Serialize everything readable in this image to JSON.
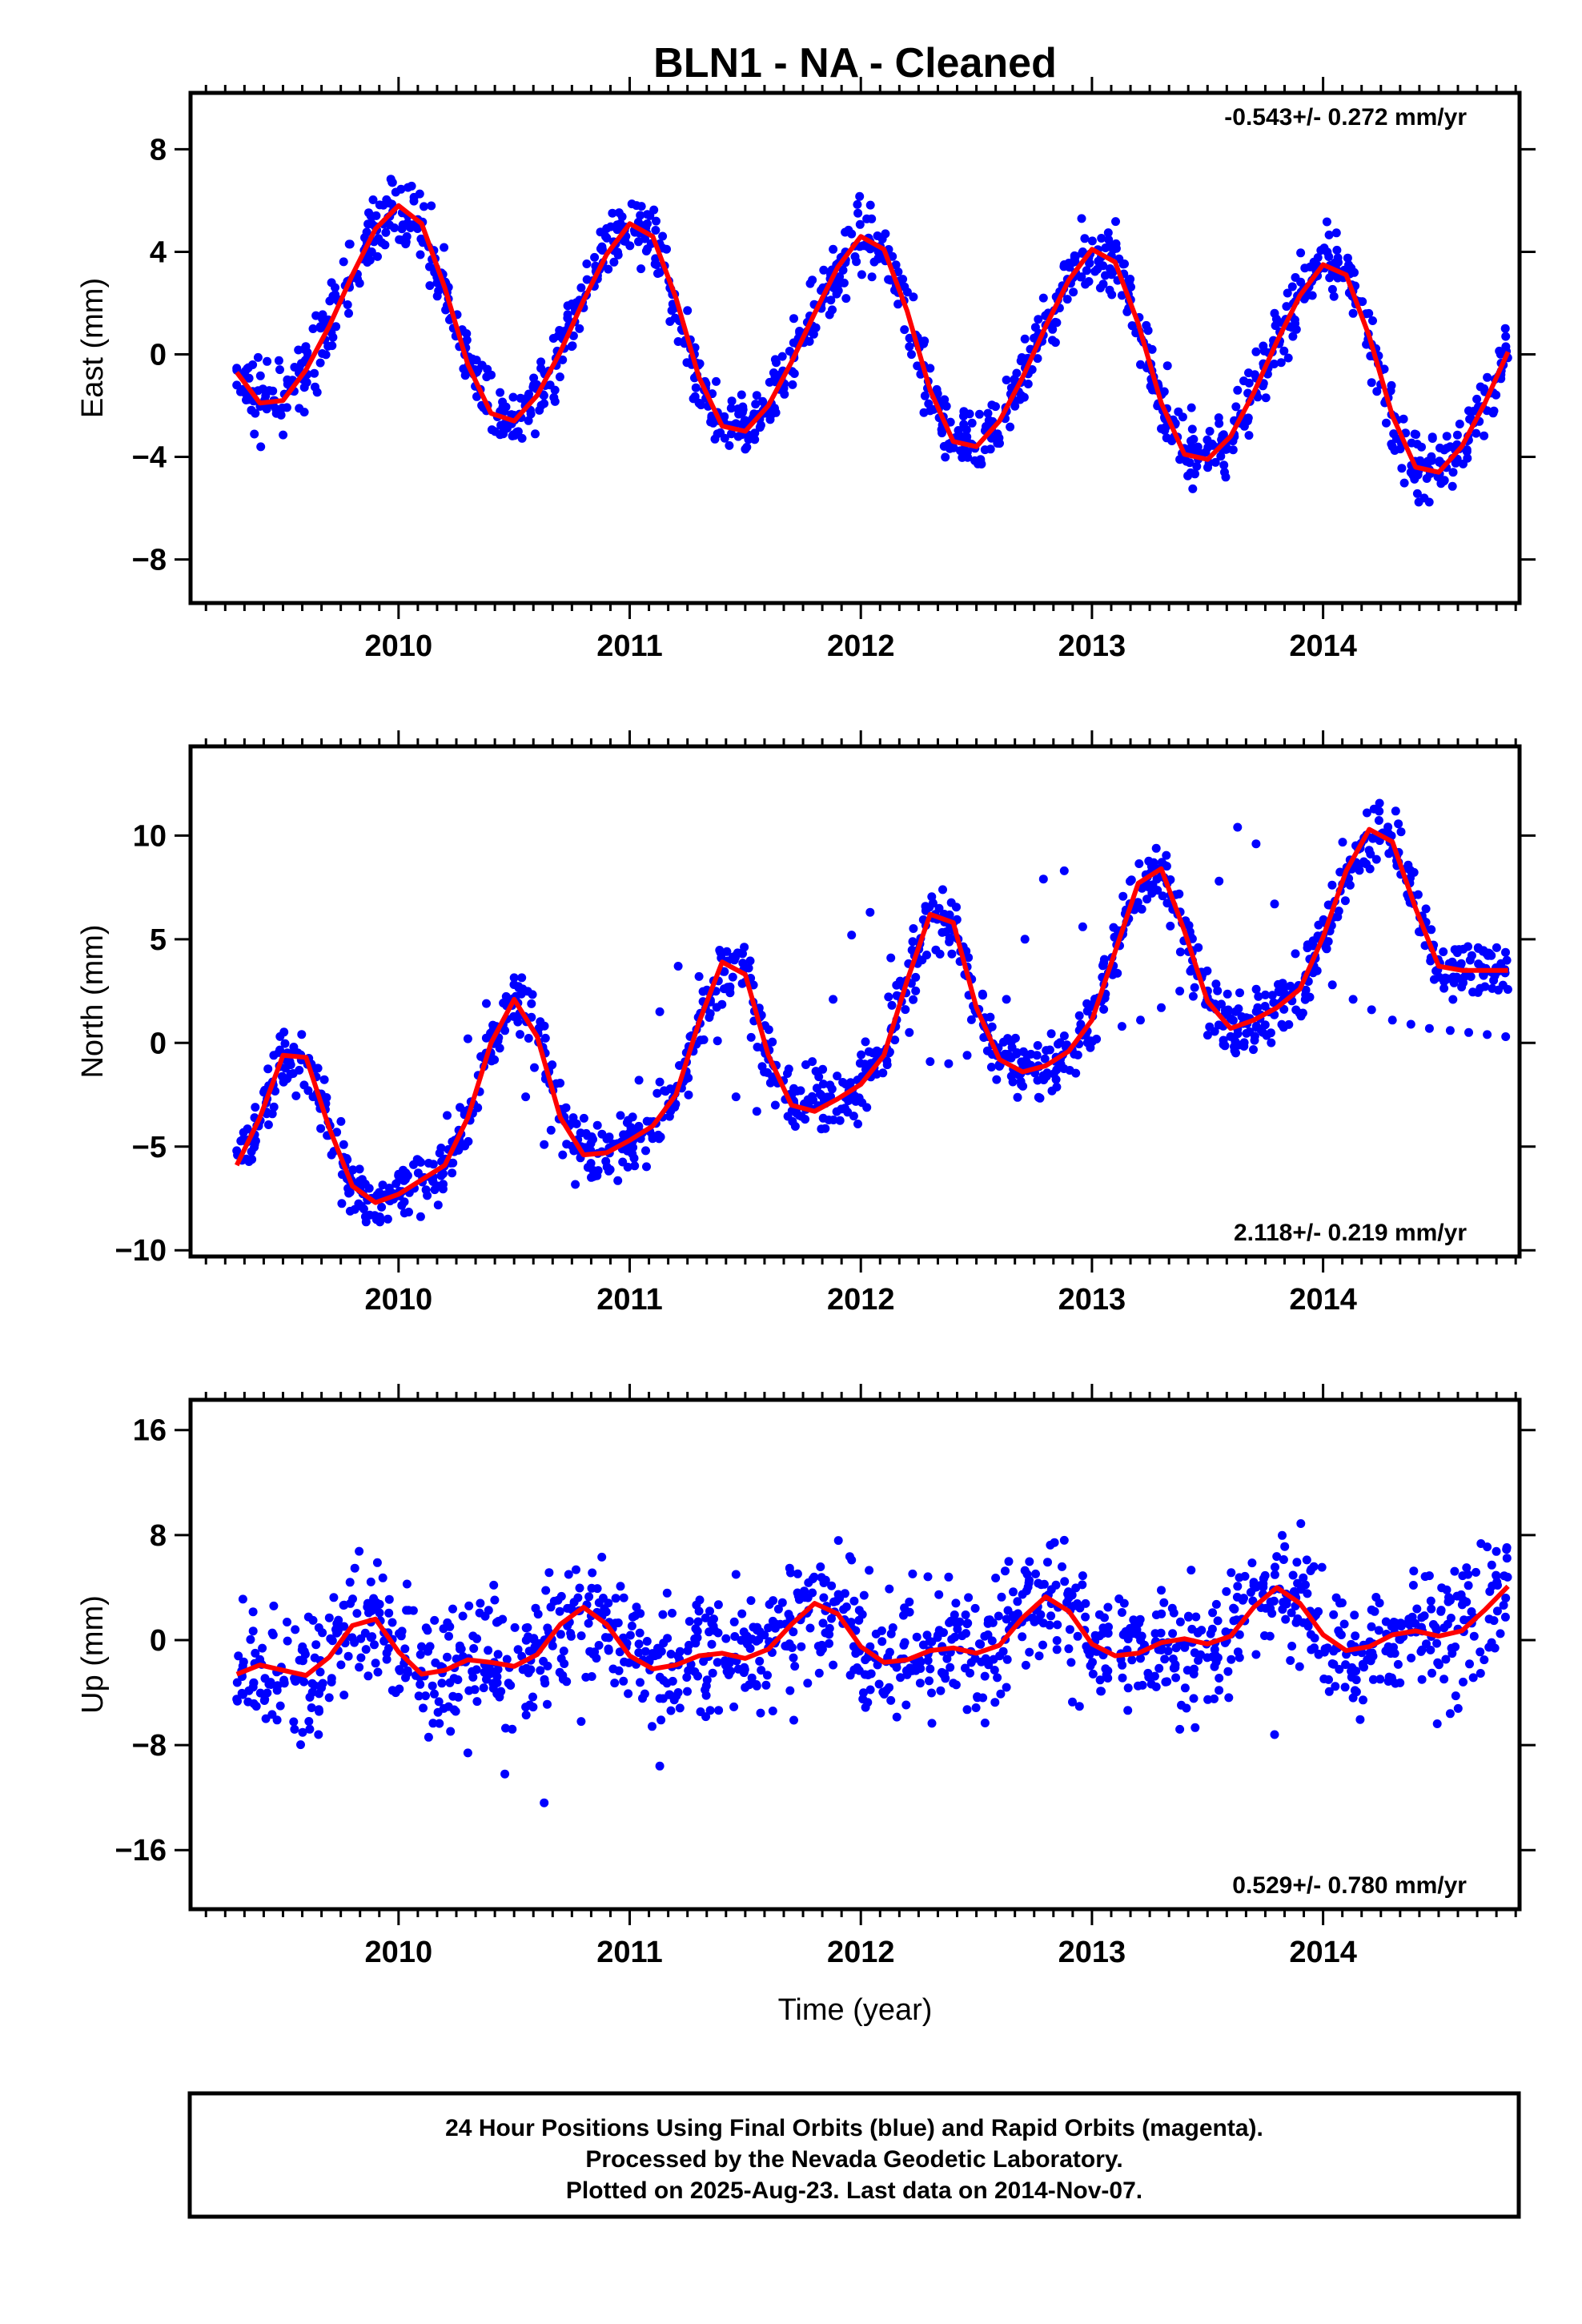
{
  "title": "BLN1  - NA - Cleaned",
  "colors": {
    "final_orbits": "#0000ff",
    "fit": "#ff0000",
    "frame": "#000000"
  },
  "footer": {
    "line1": "24 Hour Positions Using Final Orbits (blue) and Rapid Orbits (magenta).",
    "line2": "Processed by the Nevada Geodetic Laboratory.",
    "line3": "Plotted on 2025-Aug-23. Last data on 2014-Nov-07."
  },
  "chart_data": [
    {
      "type": "scatter",
      "title": "",
      "xlabel": "",
      "ylabel": "East (mm)",
      "xlim": [
        2009.1,
        2014.85
      ],
      "ylim": [
        -9.7,
        10.2
      ],
      "xticks": [
        "2010",
        "2011",
        "2012",
        "2013",
        "2014"
      ],
      "yticks": [
        "8",
        "4",
        "0",
        "−4",
        "−8"
      ],
      "rate": "-0.543+/- 0.272 mm/yr",
      "rate_position": "top-right",
      "series": [
        {
          "role": "daily_positions",
          "x": [
            2009.3,
            2009.38,
            2009.46,
            2009.55,
            2009.63,
            2009.71,
            2009.79,
            2009.88,
            2009.96,
            2010.04,
            2010.13,
            2010.21,
            2010.3,
            2010.38,
            2010.46,
            2010.55,
            2010.63,
            2010.71,
            2010.79,
            2010.88,
            2010.96,
            2011.04,
            2011.13,
            2011.21,
            2011.3,
            2011.38,
            2011.46,
            2011.55,
            2011.63,
            2011.71,
            2011.79,
            2011.88,
            2011.96,
            2012.04,
            2012.13,
            2012.21,
            2012.3,
            2012.38,
            2012.46,
            2012.55,
            2012.63,
            2012.71,
            2012.79,
            2012.88,
            2012.96,
            2013.04,
            2013.13,
            2013.21,
            2013.3,
            2013.38,
            2013.46,
            2013.55,
            2013.63,
            2013.71,
            2013.79,
            2013.88,
            2013.96,
            2014.04,
            2014.13,
            2014.21,
            2014.3,
            2014.38,
            2014.46,
            2014.55,
            2014.63,
            2014.71,
            2014.79
          ],
          "y": [
            -1.2,
            -2.3,
            -1.8,
            -0.5,
            1.0,
            2.8,
            4.3,
            5.4,
            5.9,
            5.4,
            4.2,
            1.9,
            -0.6,
            -2.2,
            -2.7,
            -1.9,
            -0.7,
            0.9,
            2.6,
            4.2,
            5.1,
            4.9,
            3.2,
            0.5,
            -1.9,
            -3.1,
            -2.7,
            -1.6,
            -0.2,
            1.4,
            2.9,
            4.1,
            4.7,
            4.4,
            2.9,
            0.3,
            -2.2,
            -3.5,
            -3.4,
            -2.3,
            -1.0,
            0.6,
            2.2,
            3.5,
            4.0,
            3.8,
            2.3,
            -0.4,
            -2.9,
            -4.1,
            -3.8,
            -2.7,
            -1.4,
            0.1,
            1.6,
            3.0,
            3.6,
            3.2,
            1.6,
            -1.1,
            -3.6,
            -4.6,
            -4.5,
            -3.6,
            -2.2,
            -0.9,
            0.7
          ]
        },
        {
          "role": "fit",
          "x": [
            2009.3,
            2009.4,
            2009.5,
            2009.6,
            2009.7,
            2009.8,
            2009.9,
            2010.0,
            2010.1,
            2010.2,
            2010.3,
            2010.4,
            2010.5,
            2010.6,
            2010.7,
            2010.8,
            2010.9,
            2011.0,
            2011.1,
            2011.2,
            2011.3,
            2011.4,
            2011.5,
            2011.6,
            2011.7,
            2011.8,
            2011.9,
            2012.0,
            2012.1,
            2012.2,
            2012.3,
            2012.4,
            2012.5,
            2012.6,
            2012.7,
            2012.8,
            2012.9,
            2013.0,
            2013.1,
            2013.2,
            2013.3,
            2013.4,
            2013.5,
            2013.6,
            2013.7,
            2013.8,
            2013.9,
            2014.0,
            2014.1,
            2014.2,
            2014.3,
            2014.4,
            2014.5,
            2014.6,
            2014.7,
            2014.8
          ],
          "y": [
            -0.7,
            -1.9,
            -1.8,
            -0.6,
            1.1,
            3.1,
            4.9,
            5.8,
            5.1,
            2.6,
            -0.4,
            -2.3,
            -2.6,
            -1.6,
            0.1,
            2.1,
            3.9,
            5.1,
            4.6,
            2.2,
            -0.9,
            -2.8,
            -3.0,
            -2.0,
            -0.3,
            1.6,
            3.4,
            4.6,
            4.1,
            1.7,
            -1.4,
            -3.4,
            -3.6,
            -2.6,
            -0.9,
            1.1,
            2.9,
            4.1,
            3.6,
            1.2,
            -1.9,
            -3.9,
            -4.1,
            -3.2,
            -1.5,
            0.5,
            2.3,
            3.5,
            3.1,
            0.7,
            -2.4,
            -4.4,
            -4.6,
            -3.6,
            -1.9,
            0.1
          ]
        }
      ]
    },
    {
      "type": "scatter",
      "title": "",
      "xlabel": "",
      "ylabel": "North (mm)",
      "xlim": [
        2009.1,
        2014.85
      ],
      "ylim": [
        -10.3,
        14.3
      ],
      "xticks": [
        "2010",
        "2011",
        "2012",
        "2013",
        "2014"
      ],
      "yticks": [
        "10",
        "5",
        "0",
        "−5",
        "−10"
      ],
      "rate": "2.118+/- 0.219 mm/yr",
      "rate_position": "bottom-right",
      "series": [
        {
          "role": "daily_positions",
          "x": [
            2009.3,
            2009.38,
            2009.46,
            2009.55,
            2009.63,
            2009.71,
            2009.79,
            2009.88,
            2009.96,
            2010.04,
            2010.13,
            2010.21,
            2010.3,
            2010.38,
            2010.46,
            2010.55,
            2010.63,
            2010.71,
            2010.79,
            2010.88,
            2010.96,
            2011.04,
            2011.13,
            2011.21,
            2011.3,
            2011.38,
            2011.46,
            2011.55,
            2011.63,
            2011.71,
            2011.79,
            2011.88,
            2011.96,
            2012.04,
            2012.13,
            2012.21,
            2012.3,
            2012.38,
            2012.46,
            2012.55,
            2012.63,
            2012.71,
            2012.79,
            2012.88,
            2012.96,
            2013.04,
            2013.13,
            2013.21,
            2013.3,
            2013.38,
            2013.46,
            2013.55,
            2013.63,
            2013.71,
            2013.79,
            2013.88,
            2013.96,
            2014.04,
            2014.13,
            2014.21,
            2014.3,
            2014.38,
            2014.46,
            2014.55,
            2014.63,
            2014.71,
            2014.79
          ],
          "y": [
            -5.2,
            -3.1,
            -0.6,
            -0.4,
            -2.6,
            -5.4,
            -7.2,
            -7.5,
            -7.0,
            -6.4,
            -5.8,
            -3.5,
            0.2,
            1.9,
            0.6,
            -2.6,
            -4.9,
            -5.4,
            -5.0,
            -4.4,
            -3.5,
            -1.8,
            1.5,
            3.7,
            3.2,
            0.1,
            -2.6,
            -3.3,
            -3.0,
            -2.2,
            -0.9,
            2.1,
            5.2,
            6.3,
            4.1,
            0.5,
            -0.9,
            -1.0,
            -0.6,
            0.3,
            2.1,
            5.0,
            7.9,
            8.3,
            5.6,
            2.0,
            0.8,
            1.1,
            1.7,
            2.5,
            4.6,
            7.8,
            10.4,
            9.6,
            6.7,
            4.3,
            3.7,
            2.8,
            2.1,
            1.6,
            1.1,
            0.9,
            0.7,
            0.6,
            0.5,
            0.4,
            0.3
          ]
        },
        {
          "role": "fit",
          "x": [
            2009.3,
            2009.4,
            2009.5,
            2009.6,
            2009.7,
            2009.8,
            2009.9,
            2010.0,
            2010.1,
            2010.2,
            2010.3,
            2010.4,
            2010.5,
            2010.6,
            2010.7,
            2010.8,
            2010.9,
            2011.0,
            2011.1,
            2011.2,
            2011.3,
            2011.4,
            2011.5,
            2011.6,
            2011.7,
            2011.8,
            2011.9,
            2012.0,
            2012.1,
            2012.2,
            2012.3,
            2012.4,
            2012.5,
            2012.6,
            2012.7,
            2012.8,
            2012.9,
            2013.0,
            2013.1,
            2013.2,
            2013.3,
            2013.4,
            2013.5,
            2013.6,
            2013.7,
            2013.8,
            2013.9,
            2014.0,
            2014.1,
            2014.2,
            2014.3,
            2014.4,
            2014.5,
            2014.6,
            2014.7,
            2014.8
          ],
          "y": [
            -5.9,
            -3.6,
            -0.6,
            -0.7,
            -4.1,
            -6.9,
            -7.7,
            -7.3,
            -6.6,
            -5.9,
            -3.6,
            0.0,
            2.1,
            0.3,
            -3.6,
            -5.4,
            -5.3,
            -4.7,
            -4.0,
            -2.5,
            1.0,
            3.9,
            3.3,
            -0.6,
            -3.0,
            -3.3,
            -2.7,
            -2.0,
            -0.6,
            3.0,
            6.2,
            5.8,
            1.7,
            -0.8,
            -1.4,
            -1.1,
            -0.4,
            1.1,
            4.4,
            7.7,
            8.4,
            5.4,
            2.0,
            0.7,
            1.1,
            1.7,
            2.6,
            5.1,
            8.3,
            10.3,
            9.7,
            6.5,
            3.7,
            3.5,
            3.5,
            3.5
          ]
        }
      ]
    },
    {
      "type": "scatter",
      "title": "",
      "xlabel": "Time (year)",
      "ylabel": "Up (mm)",
      "xlim": [
        2009.1,
        2014.85
      ],
      "ylim": [
        -20.5,
        18.3
      ],
      "xticks": [
        "2010",
        "2011",
        "2012",
        "2013",
        "2014"
      ],
      "yticks": [
        "16",
        "8",
        "0",
        "−8",
        "−16"
      ],
      "rate": "0.529+/- 0.780 mm/yr",
      "rate_position": "bottom-right",
      "series": [
        {
          "role": "daily_positions",
          "x": [
            2009.3,
            2009.38,
            2009.46,
            2009.55,
            2009.63,
            2009.71,
            2009.79,
            2009.88,
            2009.96,
            2010.04,
            2010.13,
            2010.21,
            2010.3,
            2010.38,
            2010.46,
            2010.55,
            2010.63,
            2010.71,
            2010.79,
            2010.88,
            2010.96,
            2011.04,
            2011.13,
            2011.21,
            2011.3,
            2011.38,
            2011.46,
            2011.55,
            2011.63,
            2011.71,
            2011.79,
            2011.88,
            2011.96,
            2012.04,
            2012.13,
            2012.21,
            2012.3,
            2012.38,
            2012.46,
            2012.55,
            2012.63,
            2012.71,
            2012.79,
            2012.88,
            2012.96,
            2013.04,
            2013.13,
            2013.21,
            2013.3,
            2013.38,
            2013.46,
            2013.55,
            2013.63,
            2013.71,
            2013.79,
            2013.88,
            2013.96,
            2014.04,
            2014.13,
            2014.21,
            2014.3,
            2014.38,
            2014.46,
            2014.55,
            2014.63,
            2014.71,
            2014.79
          ],
          "y": [
            -4.5,
            -1.0,
            2.6,
            -6.8,
            1.5,
            -3.2,
            4.4,
            0.2,
            3.1,
            -2.5,
            -7.4,
            -1.3,
            -8.6,
            -3.0,
            -10.2,
            -5.1,
            -12.4,
            -2.7,
            -6.2,
            1.8,
            4.1,
            -0.3,
            -9.6,
            -4.0,
            2.2,
            -1.7,
            5.0,
            -3.5,
            0.9,
            -6.1,
            3.6,
            -1.9,
            6.1,
            -0.5,
            -4.6,
            2.9,
            -2.2,
            4.8,
            -5.3,
            0.4,
            -3.6,
            5.3,
            1.3,
            7.6,
            4.9,
            -3.9,
            2.1,
            -1.4,
            3.8,
            -6.8,
            0.6,
            -2.9,
            4.1,
            -1.1,
            -7.2,
            2.6,
            5.6,
            -1.8,
            -4.4,
            2.3,
            -3.1,
            0.6,
            4.9,
            -5.6,
            1.5,
            7.1,
            3.2
          ]
        },
        {
          "role": "fit",
          "x": [
            2009.3,
            2009.4,
            2009.5,
            2009.6,
            2009.7,
            2009.8,
            2009.9,
            2010.0,
            2010.1,
            2010.2,
            2010.3,
            2010.4,
            2010.5,
            2010.6,
            2010.7,
            2010.8,
            2010.9,
            2011.0,
            2011.1,
            2011.2,
            2011.3,
            2011.4,
            2011.5,
            2011.6,
            2011.7,
            2011.8,
            2011.9,
            2012.0,
            2012.1,
            2012.2,
            2012.3,
            2012.4,
            2012.5,
            2012.6,
            2012.7,
            2012.8,
            2012.9,
            2013.0,
            2013.1,
            2013.2,
            2013.3,
            2013.4,
            2013.5,
            2013.6,
            2013.7,
            2013.8,
            2013.9,
            2014.0,
            2014.1,
            2014.2,
            2014.3,
            2014.4,
            2014.5,
            2014.6,
            2014.7,
            2014.8
          ],
          "y": [
            -2.6,
            -1.9,
            -2.3,
            -2.7,
            -1.3,
            1.1,
            1.6,
            -0.9,
            -2.6,
            -2.3,
            -1.5,
            -1.7,
            -2.0,
            -1.1,
            1.2,
            2.5,
            1.2,
            -1.2,
            -2.2,
            -1.9,
            -1.2,
            -1.0,
            -1.4,
            -0.7,
            1.2,
            2.8,
            2.0,
            -0.5,
            -1.7,
            -1.5,
            -0.8,
            -0.6,
            -1.0,
            -0.4,
            1.7,
            3.3,
            2.2,
            -0.3,
            -1.2,
            -1.0,
            -0.2,
            0.1,
            -0.3,
            0.3,
            2.5,
            4.0,
            2.8,
            0.4,
            -0.8,
            -0.5,
            0.4,
            0.7,
            0.3,
            0.7,
            2.3,
            4.1
          ]
        }
      ]
    }
  ]
}
